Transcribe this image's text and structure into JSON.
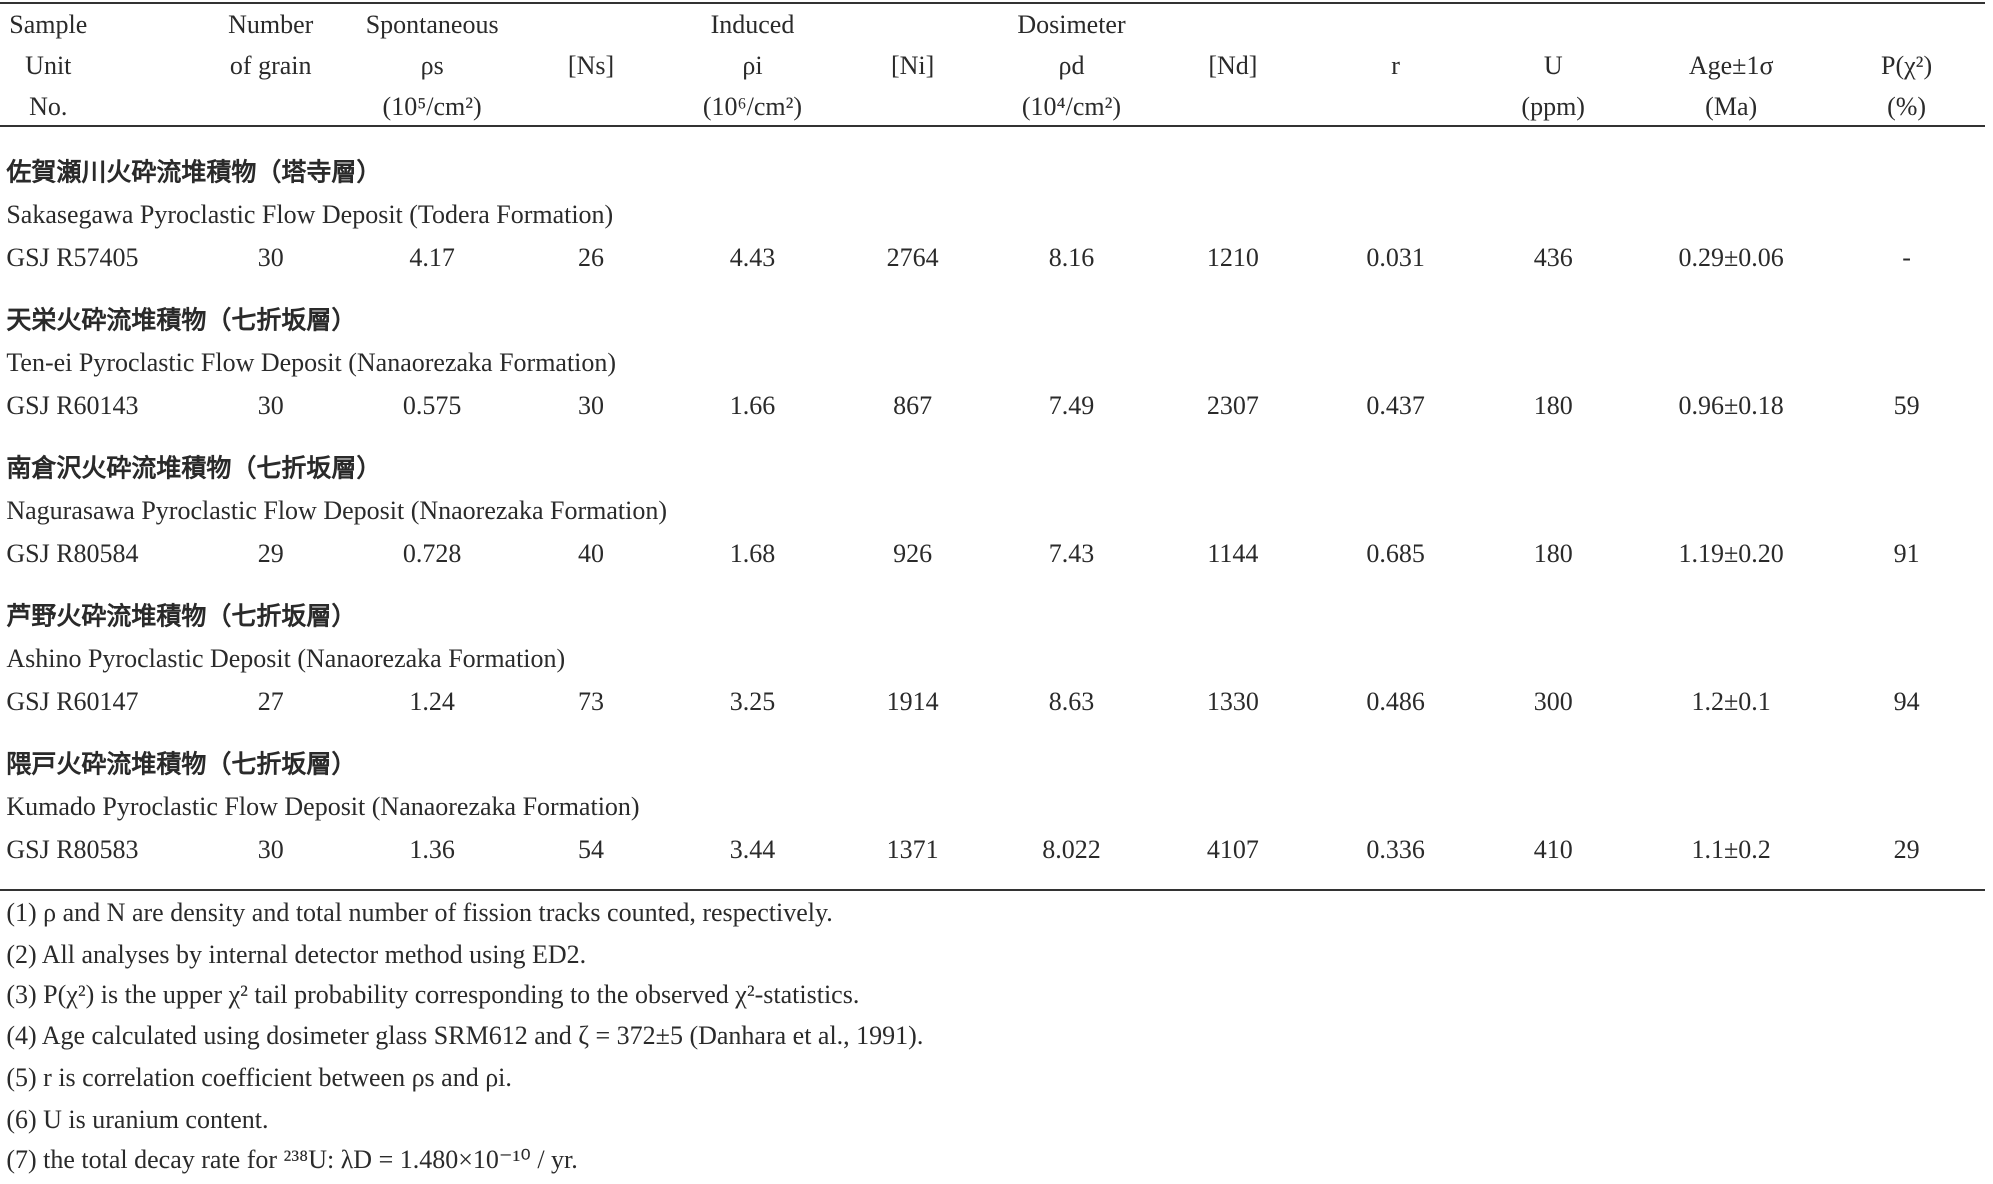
{
  "header": {
    "rows": [
      [
        "Sample",
        "Number",
        "Spontaneous",
        null,
        "Induced",
        null,
        "Dosimeter",
        null,
        null,
        null,
        null,
        null
      ],
      [
        "Unit",
        "of grain",
        "ρs",
        "[Ns]",
        "ρi",
        "[Ni]",
        "ρd",
        "[Nd]",
        "r",
        "U",
        "Age±1σ",
        "P(χ²)"
      ],
      [
        "No.",
        null,
        "(10⁵/cm²)",
        null,
        "(10⁶/cm²)",
        null,
        "(10⁴/cm²)",
        null,
        null,
        "(ppm)",
        "(Ma)",
        "(%)"
      ]
    ]
  },
  "groups": [
    {
      "title_ja": "佐賀瀬川火砕流堆積物（塔寺層）",
      "title_en": "Sakasegawa Pyroclastic Flow Deposit (Todera Formation)",
      "row": [
        "GSJ R57405",
        "30",
        "4.17",
        "26",
        "4.43",
        "2764",
        "8.16",
        "1210",
        "0.031",
        "436",
        "0.29±0.06",
        "-"
      ]
    },
    {
      "title_ja": "天栄火砕流堆積物（七折坂層）",
      "title_en": "Ten-ei Pyroclastic Flow Deposit (Nanaorezaka Formation)",
      "row": [
        "GSJ R60143",
        "30",
        "0.575",
        "30",
        "1.66",
        "867",
        "7.49",
        "2307",
        "0.437",
        "180",
        "0.96±0.18",
        "59"
      ]
    },
    {
      "title_ja": "南倉沢火砕流堆積物（七折坂層）",
      "title_en": "Nagurasawa Pyroclastic Flow Deposit (Nnaorezaka Formation)",
      "row": [
        "GSJ R80584",
        "29",
        "0.728",
        "40",
        "1.68",
        "926",
        "7.43",
        "1144",
        "0.685",
        "180",
        "1.19±0.20",
        "91"
      ]
    },
    {
      "title_ja": "芦野火砕流堆積物（七折坂層）",
      "title_en": "Ashino Pyroclastic Deposit (Nanaorezaka Formation)",
      "row": [
        "GSJ R60147",
        "27",
        "1.24",
        "73",
        "3.25",
        "1914",
        "8.63",
        "1330",
        "0.486",
        "300",
        "1.2±0.1",
        "94"
      ]
    },
    {
      "title_ja": "隈戸火砕流堆積物（七折坂層）",
      "title_en": "Kumado Pyroclastic Flow Deposit (Nanaorezaka Formation)",
      "row": [
        "GSJ R80583",
        "30",
        "1.36",
        "54",
        "3.44",
        "1371",
        "8.022",
        "4107",
        "0.336",
        "410",
        "1.1±0.2",
        "29"
      ]
    }
  ],
  "notes": [
    "(1) ρ and N are density and total number of fission tracks counted, respectively.",
    "(2) All analyses by internal detector method using ED2.",
    "(3) P(χ²) is the upper χ² tail probability corresponding to the observed χ²-statistics.",
    "(4) Age calculated using dosimeter glass SRM612 and ζ = 372±5 (Danhara et al., 1991).",
    "(5) r is correlation coefficient between ρs and ρi.",
    "(6) U is uranium content.",
    "(7) the total decay rate for ²³⁸U: λD = 1.480×10⁻¹⁰ / yr."
  ]
}
